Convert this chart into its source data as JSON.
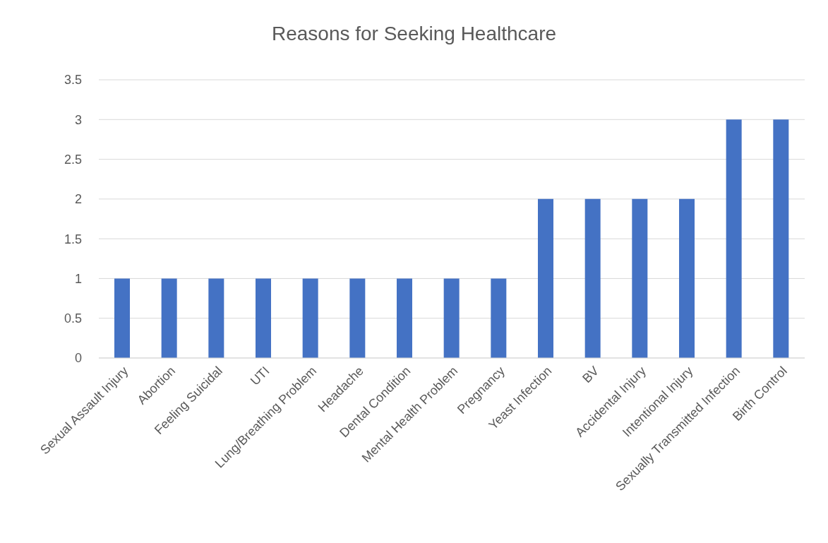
{
  "chart_data": {
    "type": "bar",
    "title": "Reasons for Seeking Healthcare",
    "categories": [
      "Sexual Assault Injury",
      "Abortion",
      "Feeling Suicidal",
      "UTI",
      "Lung/Breathing Problem",
      "Headache",
      "Dental Condition",
      "Mental Health Problem",
      "Pregnancy",
      "Yeast Infection",
      "BV",
      "Accidental Injury",
      "Intentional Injury",
      "Sexually Transmitted Infection",
      "Birth Control"
    ],
    "values": [
      1,
      1,
      1,
      1,
      1,
      1,
      1,
      1,
      1,
      2,
      2,
      2,
      2,
      3,
      3
    ],
    "color": "#4472c4",
    "ylim": [
      0,
      3.5
    ],
    "yticks": [
      0,
      0.5,
      1,
      1.5,
      2,
      2.5,
      3,
      3.5
    ],
    "grid": "y"
  }
}
